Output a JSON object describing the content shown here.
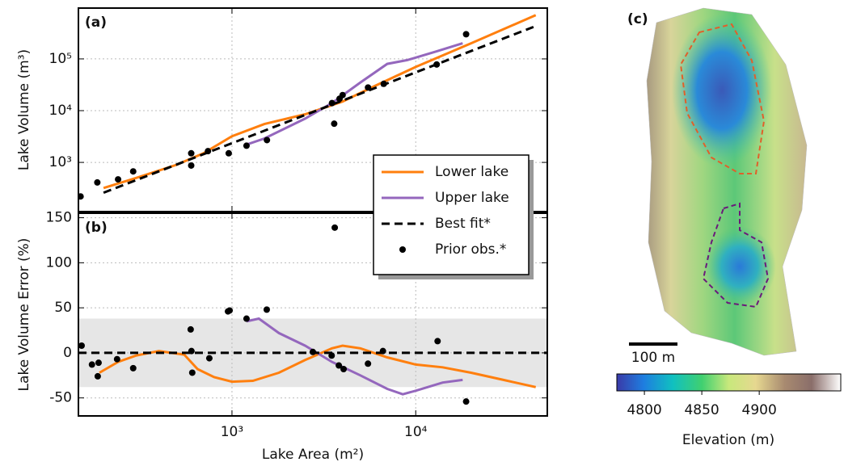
{
  "chart_data": [
    {
      "type": "line",
      "label": "(a)",
      "ylabel": "Lake Volume (m³)",
      "log_x": true,
      "log_y": true,
      "xlim": [
        146,
        52000
      ],
      "ylim": [
        112,
        960000
      ],
      "yticks": [
        {
          "value": 1000,
          "label": "10³"
        },
        {
          "value": 10000,
          "label": "10⁴"
        },
        {
          "value": 100000,
          "label": "10⁵"
        }
      ],
      "grid": true,
      "series": [
        {
          "name": "Lower lake",
          "color": "#ff7f0e",
          "style": "solid",
          "x": [
            200,
            300,
            500,
            700,
            1000,
            1500,
            2500,
            4000,
            6000,
            10000,
            20000,
            45000
          ],
          "values": [
            320,
            500,
            900,
            1500,
            3200,
            5500,
            8500,
            15000,
            30000,
            70000,
            200000,
            700000
          ]
        },
        {
          "name": "Upper lake",
          "color": "#9467bd",
          "style": "solid",
          "x": [
            1200,
            1500,
            2500,
            3500,
            5000,
            7000,
            9000,
            13000,
            18000
          ],
          "values": [
            2200,
            2900,
            7000,
            14000,
            35000,
            80000,
            95000,
            140000,
            200000
          ]
        },
        {
          "name": "Best fit*",
          "color": "#000000",
          "style": "dashed",
          "x": [
            200,
            45000
          ],
          "values": [
            260,
            430000
          ]
        },
        {
          "name": "Prior obs.*",
          "color": "#000000",
          "style": "scatter",
          "x": [
            150,
            185,
            240,
            290,
            600,
            600,
            740,
            960,
            1200,
            1550,
            3500,
            3600,
            3850,
            4000,
            5500,
            6700,
            13000,
            18800
          ],
          "values": [
            220,
            410,
            470,
            670,
            870,
            1500,
            1650,
            1500,
            2100,
            2700,
            14000,
            5600,
            17000,
            20000,
            28000,
            33000,
            78000,
            300000
          ]
        }
      ]
    },
    {
      "type": "line",
      "label": "(b)",
      "ylabel": "Lake Volume Error (%)",
      "xlabel": "Lake Area (m²)",
      "log_x": true,
      "log_y": false,
      "xlim": [
        146,
        52000
      ],
      "ylim": [
        -70,
        155
      ],
      "xticks": [
        {
          "value": 1000,
          "label": "10³"
        },
        {
          "value": 10000,
          "label": "10⁴"
        }
      ],
      "yticks": [
        -50,
        0,
        50,
        100,
        150
      ],
      "band": [
        -38,
        38
      ],
      "grid": true,
      "series": [
        {
          "color": "#ff7f0e",
          "style": "solid",
          "x": [
            190,
            240,
            300,
            400,
            550,
            650,
            800,
            1000,
            1300,
            1800,
            2500,
            3500,
            4000,
            5000,
            7000,
            10000,
            14000,
            20000,
            30000,
            45000
          ],
          "values": [
            -22,
            -10,
            -3,
            2,
            -2,
            -18,
            -27,
            -32,
            -31,
            -22,
            -8,
            5,
            8,
            5,
            -5,
            -13,
            -16,
            -22,
            -30,
            -38
          ]
        },
        {
          "color": "#9467bd",
          "style": "solid",
          "x": [
            1200,
            1400,
            1800,
            2500,
            3500,
            5000,
            7000,
            8500,
            10000,
            14000,
            18000
          ],
          "values": [
            35,
            38,
            22,
            8,
            -10,
            -25,
            -40,
            -46,
            -42,
            -33,
            -30
          ]
        },
        {
          "color": "#000000",
          "style": "dashed",
          "x": [
            146,
            52000
          ],
          "values": [
            0,
            0
          ]
        },
        {
          "color": "#000000",
          "style": "scatter",
          "x": [
            152,
            173,
            186,
            188,
            237,
            290,
            596,
            602,
            608,
            753,
            951,
            971,
            1200,
            1546,
            2755,
            3487,
            3625,
            3815,
            4050,
            5497,
            6630,
            13150,
            18800
          ],
          "values": [
            8,
            -13,
            -26,
            -11,
            -7,
            -17,
            26,
            2,
            -22,
            -6,
            46,
            47,
            38,
            48,
            1,
            -3,
            139,
            -14,
            -18,
            -12,
            2,
            13,
            -54
          ]
        }
      ]
    },
    {
      "type": "map",
      "label": "(c)",
      "scale_bar": "100 m",
      "colorbar": {
        "label": "Elevation (m)",
        "lim": [
          4776,
          4971
        ],
        "ticks": [
          4800,
          4850,
          4900
        ]
      }
    }
  ]
}
